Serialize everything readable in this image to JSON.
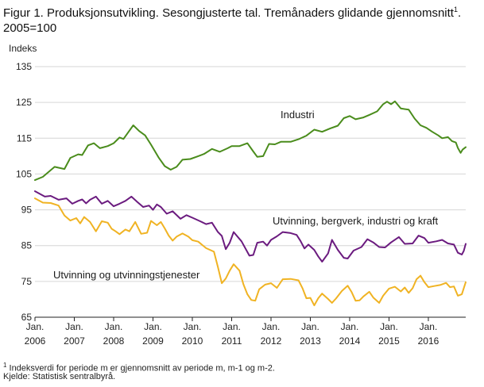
{
  "title": "Figur 1. Produksjonsutvikling. Sesongjusterte tal. Tremånaders glidande gjennomsnitt",
  "title_sup": "1",
  "title_tail": ". 2005=100",
  "footnote_sup": "1",
  "footnote": " Indeksverdi for periode m er gjennomsnitt av periode m, m-1 og m-2.",
  "source": "Kjelde: Statistisk sentralbyrå.",
  "chart_data": {
    "type": "line",
    "ylabel": "Indeks",
    "ylim": [
      65,
      135
    ],
    "yticks": [
      65,
      75,
      85,
      95,
      105,
      115,
      125,
      135
    ],
    "xlim": [
      2006.0,
      2016.95
    ],
    "xticks": [
      {
        "x": 2006,
        "top": "Jan.",
        "bottom": "2006"
      },
      {
        "x": 2007,
        "top": "Jan.",
        "bottom": "2007"
      },
      {
        "x": 2008,
        "top": "Jan.",
        "bottom": "2008"
      },
      {
        "x": 2009,
        "top": "Jan.",
        "bottom": "2009"
      },
      {
        "x": 2010,
        "top": "Jan.",
        "bottom": "2010"
      },
      {
        "x": 2011,
        "top": "Jan.",
        "bottom": "2011"
      },
      {
        "x": 2012,
        "top": "Jan.",
        "bottom": "2012"
      },
      {
        "x": 2013,
        "top": "Jan.",
        "bottom": "2013"
      },
      {
        "x": 2014,
        "top": "Jan.",
        "bottom": "2014"
      },
      {
        "x": 2015,
        "top": "Jan.",
        "bottom": "2015"
      },
      {
        "x": 2016,
        "top": "Jan.",
        "bottom": "2016"
      }
    ],
    "grid": true,
    "series": [
      {
        "name": "Industri",
        "color": "#4a8c1c",
        "points": [
          [
            2006.0,
            103.3
          ],
          [
            2006.2,
            104.2
          ],
          [
            2006.5,
            107.0
          ],
          [
            2006.75,
            106.4
          ],
          [
            2006.9,
            109.5
          ],
          [
            2007.1,
            110.5
          ],
          [
            2007.2,
            110.3
          ],
          [
            2007.35,
            113.0
          ],
          [
            2007.5,
            113.6
          ],
          [
            2007.65,
            112.2
          ],
          [
            2007.85,
            112.8
          ],
          [
            2008.0,
            113.6
          ],
          [
            2008.15,
            115.2
          ],
          [
            2008.25,
            114.8
          ],
          [
            2008.4,
            117.1
          ],
          [
            2008.5,
            118.6
          ],
          [
            2008.65,
            117.0
          ],
          [
            2008.8,
            115.8
          ],
          [
            2008.95,
            113.2
          ],
          [
            2009.15,
            109.5
          ],
          [
            2009.3,
            107.2
          ],
          [
            2009.45,
            106.2
          ],
          [
            2009.6,
            107.0
          ],
          [
            2009.75,
            109.0
          ],
          [
            2009.95,
            109.2
          ],
          [
            2010.15,
            110.0
          ],
          [
            2010.3,
            110.6
          ],
          [
            2010.5,
            112.0
          ],
          [
            2010.7,
            111.2
          ],
          [
            2010.9,
            112.2
          ],
          [
            2011.0,
            112.8
          ],
          [
            2011.2,
            112.8
          ],
          [
            2011.4,
            113.6
          ],
          [
            2011.55,
            111.3
          ],
          [
            2011.65,
            109.8
          ],
          [
            2011.8,
            110.0
          ],
          [
            2011.95,
            113.4
          ],
          [
            2012.1,
            113.3
          ],
          [
            2012.25,
            114.0
          ],
          [
            2012.5,
            114.0
          ],
          [
            2012.7,
            114.7
          ],
          [
            2012.9,
            115.7
          ],
          [
            2013.1,
            117.4
          ],
          [
            2013.3,
            116.8
          ],
          [
            2013.5,
            117.7
          ],
          [
            2013.7,
            118.5
          ],
          [
            2013.85,
            120.6
          ],
          [
            2014.0,
            121.2
          ],
          [
            2014.15,
            120.3
          ],
          [
            2014.35,
            120.8
          ],
          [
            2014.5,
            121.5
          ],
          [
            2014.7,
            122.5
          ],
          [
            2014.85,
            124.5
          ],
          [
            2014.95,
            125.2
          ],
          [
            2015.05,
            124.5
          ],
          [
            2015.15,
            125.3
          ],
          [
            2015.3,
            123.3
          ],
          [
            2015.5,
            123.0
          ],
          [
            2015.65,
            120.5
          ],
          [
            2015.8,
            118.6
          ],
          [
            2015.95,
            117.9
          ],
          [
            2016.1,
            116.8
          ],
          [
            2016.25,
            115.8
          ],
          [
            2016.35,
            115.0
          ],
          [
            2016.5,
            115.3
          ],
          [
            2016.6,
            114.2
          ],
          [
            2016.7,
            113.8
          ],
          [
            2016.75,
            112.3
          ],
          [
            2016.82,
            110.9
          ],
          [
            2016.87,
            111.8
          ],
          [
            2016.95,
            112.5
          ]
        ]
      },
      {
        "name": "Utvinning, bergverk, industri og kraft",
        "color": "#6b1b7f",
        "points": [
          [
            2006.0,
            100.2
          ],
          [
            2006.25,
            98.7
          ],
          [
            2006.4,
            98.9
          ],
          [
            2006.6,
            97.8
          ],
          [
            2006.8,
            98.2
          ],
          [
            2006.95,
            96.7
          ],
          [
            2007.1,
            97.5
          ],
          [
            2007.2,
            97.9
          ],
          [
            2007.3,
            96.8
          ],
          [
            2007.4,
            97.8
          ],
          [
            2007.55,
            98.7
          ],
          [
            2007.7,
            96.7
          ],
          [
            2007.85,
            97.5
          ],
          [
            2008.0,
            96.0
          ],
          [
            2008.15,
            96.7
          ],
          [
            2008.3,
            97.5
          ],
          [
            2008.45,
            98.7
          ],
          [
            2008.6,
            97.2
          ],
          [
            2008.75,
            95.8
          ],
          [
            2008.9,
            96.2
          ],
          [
            2009.0,
            95.0
          ],
          [
            2009.1,
            96.5
          ],
          [
            2009.2,
            95.8
          ],
          [
            2009.35,
            93.9
          ],
          [
            2009.5,
            94.6
          ],
          [
            2009.7,
            92.5
          ],
          [
            2009.85,
            93.5
          ],
          [
            2010.0,
            92.8
          ],
          [
            2010.2,
            91.8
          ],
          [
            2010.35,
            91.0
          ],
          [
            2010.5,
            91.4
          ],
          [
            2010.65,
            88.8
          ],
          [
            2010.75,
            87.7
          ],
          [
            2010.85,
            84.0
          ],
          [
            2010.95,
            85.8
          ],
          [
            2011.05,
            88.8
          ],
          [
            2011.25,
            86.2
          ],
          [
            2011.45,
            82.2
          ],
          [
            2011.55,
            82.4
          ],
          [
            2011.65,
            85.8
          ],
          [
            2011.8,
            86.1
          ],
          [
            2011.9,
            85.0
          ],
          [
            2012.0,
            86.6
          ],
          [
            2012.15,
            87.6
          ],
          [
            2012.3,
            88.8
          ],
          [
            2012.5,
            88.5
          ],
          [
            2012.65,
            88.0
          ],
          [
            2012.75,
            86.3
          ],
          [
            2012.85,
            84.2
          ],
          [
            2012.95,
            85.3
          ],
          [
            2013.1,
            83.8
          ],
          [
            2013.2,
            82.0
          ],
          [
            2013.3,
            80.5
          ],
          [
            2013.45,
            82.8
          ],
          [
            2013.55,
            86.6
          ],
          [
            2013.7,
            83.8
          ],
          [
            2013.85,
            81.6
          ],
          [
            2013.95,
            81.4
          ],
          [
            2014.1,
            83.6
          ],
          [
            2014.3,
            84.6
          ],
          [
            2014.45,
            86.8
          ],
          [
            2014.6,
            85.9
          ],
          [
            2014.75,
            84.6
          ],
          [
            2014.9,
            84.5
          ],
          [
            2015.05,
            85.9
          ],
          [
            2015.25,
            87.4
          ],
          [
            2015.4,
            85.5
          ],
          [
            2015.6,
            85.6
          ],
          [
            2015.75,
            87.8
          ],
          [
            2015.9,
            87.1
          ],
          [
            2016.0,
            85.8
          ],
          [
            2016.2,
            86.2
          ],
          [
            2016.35,
            86.6
          ],
          [
            2016.5,
            85.6
          ],
          [
            2016.65,
            85.3
          ],
          [
            2016.75,
            83.0
          ],
          [
            2016.85,
            82.5
          ],
          [
            2016.9,
            83.5
          ],
          [
            2016.95,
            85.5
          ]
        ]
      },
      {
        "name": "Utvinning og utvinningstjenester",
        "color": "#f0b323",
        "points": [
          [
            2006.0,
            98.2
          ],
          [
            2006.2,
            97.0
          ],
          [
            2006.4,
            96.9
          ],
          [
            2006.6,
            96.2
          ],
          [
            2006.75,
            93.4
          ],
          [
            2006.9,
            92.0
          ],
          [
            2007.05,
            92.7
          ],
          [
            2007.15,
            91.2
          ],
          [
            2007.25,
            93.0
          ],
          [
            2007.4,
            91.6
          ],
          [
            2007.55,
            89.0
          ],
          [
            2007.7,
            91.8
          ],
          [
            2007.85,
            91.4
          ],
          [
            2007.95,
            89.7
          ],
          [
            2008.05,
            89.0
          ],
          [
            2008.15,
            88.2
          ],
          [
            2008.3,
            89.5
          ],
          [
            2008.4,
            89.0
          ],
          [
            2008.55,
            91.6
          ],
          [
            2008.7,
            88.3
          ],
          [
            2008.85,
            88.6
          ],
          [
            2008.95,
            91.9
          ],
          [
            2009.1,
            90.7
          ],
          [
            2009.2,
            91.6
          ],
          [
            2009.3,
            89.8
          ],
          [
            2009.4,
            87.8
          ],
          [
            2009.5,
            86.4
          ],
          [
            2009.6,
            87.5
          ],
          [
            2009.75,
            88.4
          ],
          [
            2009.9,
            87.5
          ],
          [
            2010.0,
            86.5
          ],
          [
            2010.15,
            86.1
          ],
          [
            2010.35,
            84.3
          ],
          [
            2010.55,
            83.3
          ],
          [
            2010.65,
            79.0
          ],
          [
            2010.75,
            74.5
          ],
          [
            2010.85,
            75.8
          ],
          [
            2010.95,
            78.0
          ],
          [
            2011.05,
            79.8
          ],
          [
            2011.2,
            78.0
          ],
          [
            2011.3,
            74.2
          ],
          [
            2011.4,
            71.4
          ],
          [
            2011.5,
            69.8
          ],
          [
            2011.6,
            69.6
          ],
          [
            2011.7,
            72.8
          ],
          [
            2011.85,
            74.1
          ],
          [
            2012.0,
            74.5
          ],
          [
            2012.15,
            73.2
          ],
          [
            2012.3,
            75.6
          ],
          [
            2012.5,
            75.7
          ],
          [
            2012.7,
            75.3
          ],
          [
            2012.8,
            73.1
          ],
          [
            2012.9,
            70.3
          ],
          [
            2013.0,
            70.4
          ],
          [
            2013.1,
            68.3
          ],
          [
            2013.2,
            70.3
          ],
          [
            2013.3,
            71.6
          ],
          [
            2013.45,
            70.1
          ],
          [
            2013.55,
            69.0
          ],
          [
            2013.65,
            70.2
          ],
          [
            2013.8,
            72.3
          ],
          [
            2013.95,
            73.8
          ],
          [
            2014.05,
            72.0
          ],
          [
            2014.15,
            69.6
          ],
          [
            2014.25,
            69.7
          ],
          [
            2014.35,
            70.8
          ],
          [
            2014.5,
            72.1
          ],
          [
            2014.6,
            70.5
          ],
          [
            2014.75,
            69.0
          ],
          [
            2014.85,
            71.0
          ],
          [
            2015.0,
            73.0
          ],
          [
            2015.15,
            73.5
          ],
          [
            2015.3,
            72.2
          ],
          [
            2015.4,
            73.3
          ],
          [
            2015.5,
            71.8
          ],
          [
            2015.6,
            73.1
          ],
          [
            2015.7,
            75.6
          ],
          [
            2015.8,
            76.6
          ],
          [
            2015.9,
            74.8
          ],
          [
            2016.0,
            73.4
          ],
          [
            2016.15,
            73.7
          ],
          [
            2016.3,
            74.0
          ],
          [
            2016.45,
            74.6
          ],
          [
            2016.55,
            73.4
          ],
          [
            2016.65,
            73.6
          ],
          [
            2016.75,
            71.0
          ],
          [
            2016.85,
            71.4
          ],
          [
            2016.95,
            74.8
          ]
        ]
      }
    ]
  }
}
